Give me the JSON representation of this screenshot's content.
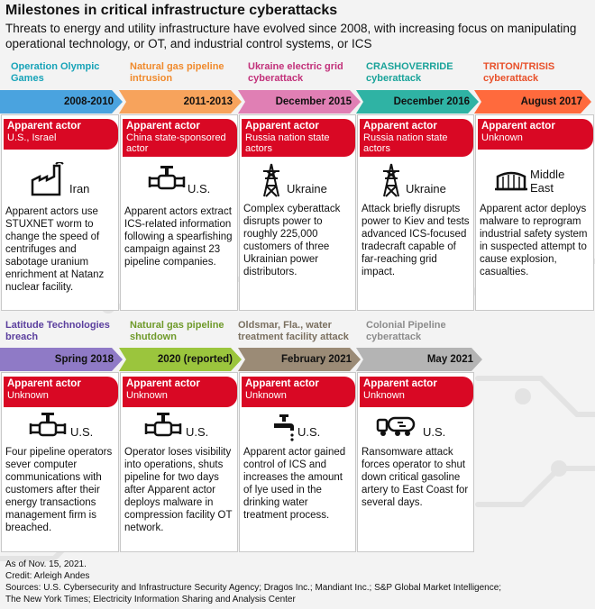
{
  "header": {
    "title": "Milestones in critical infrastructure cyberattacks",
    "subtitle": "Threats to energy and utility infrastructure have evolved since 2008, with increasing focus on manipulating operational technology, or OT, and industrial control systems, or ICS"
  },
  "colors": {
    "teal": "#17a3b8",
    "orange": "#f08a2c",
    "pink": "#c2317a",
    "teal2": "#1aa39a",
    "red_orange": "#e8502a",
    "purple": "#5b3f9e",
    "green": "#6f9a2a",
    "brown": "#7a6f5f",
    "gray": "#8c8c8c",
    "blue_arrow": "#4aa3df",
    "orange_arrow": "#f08a2c",
    "pink_arrow": "#e07fb4",
    "teal_arrow": "#2fb3a4",
    "red_arrow": "#ff6a3d",
    "purple_arrow": "#8f7ac6",
    "green_arrow": "#9bc53d",
    "brown_arrow": "#9b8b76",
    "gray_arrow": "#b4b4b4",
    "badge": "#d90824"
  },
  "badge_label": "Apparent actor",
  "events": [
    {
      "title": "Operation Olympic Games",
      "date": "2008-2010",
      "actor": "U.S., Israel",
      "country": "Iran",
      "icon": "power-plant-icon",
      "desc": "Apparent actors use STUXNET worm to change the speed of centrifuges and sabotage uranium enrichment at Natanz nuclear facility."
    },
    {
      "title": "Natural gas pipeline intrusion",
      "date": "2011-2013",
      "actor": "China state-sponsored actor",
      "country": "U.S.",
      "icon": "pipeline-valve-icon",
      "desc": "Apparent actors extract ICS-related information following a spearfishing campaign against 23 pipeline companies."
    },
    {
      "title": "Ukraine electric grid cyberattack",
      "date": "December 2015",
      "actor": "Russia nation state actors",
      "country": "Ukraine",
      "icon": "power-tower-icon",
      "desc": "Complex cyberattack disrupts power to roughly 225,000 customers of three Ukrainian power distributors."
    },
    {
      "title": "CRASHOVERRIDE cyberattack",
      "date": "December 2016",
      "actor": "Russia nation state actors",
      "country": "Ukraine",
      "icon": "power-tower-icon",
      "desc": "Attack briefly disrupts power to Kiev and tests advanced ICS-focused tradecraft capable of far-reaching grid impact."
    },
    {
      "title": "TRITON/TRISIS cyberattack",
      "date": "August 2017",
      "actor": "Unknown",
      "country": "Middle East",
      "icon": "storage-tank-icon",
      "desc": "Apparent actor deploys malware to reprogram industrial safety system in suspected attempt to cause explosion, casualties."
    },
    {
      "title": "Latitude Technologies breach",
      "date": "Spring 2018",
      "actor": "Unknown",
      "country": "U.S.",
      "icon": "pipeline-valve-icon",
      "desc": "Four pipeline operators sever computer communications with customers after their energy transactions management firm is breached."
    },
    {
      "title": "Natural gas pipeline shutdown",
      "date": "2020 (reported)",
      "actor": "Unknown",
      "country": "U.S.",
      "icon": "pipeline-valve-icon",
      "desc": "Operator loses visibility into operations, shuts pipeline for two days after Apparent actor deploys malware in compression facility OT network."
    },
    {
      "title": "Oldsmar, Fla., water treatment facility attack",
      "date": "February 2021",
      "actor": "Unknown",
      "country": "U.S.",
      "icon": "water-faucet-icon",
      "desc": "Apparent actor gained control of ICS and increases the amount of lye used in the drinking water treatment process."
    },
    {
      "title": "Colonial Pipeline cyberattack",
      "date": "May 2021",
      "actor": "Unknown",
      "country": "U.S.",
      "icon": "tanker-truck-icon",
      "desc": "Ransomware attack forces operator to shut down critical gasoline artery to East Coast for several days."
    }
  ],
  "footer": {
    "as_of": "As of Nov. 15, 2021.",
    "credit": "Credit: Arleigh Andes",
    "sources_1": "Sources: U.S. Cybersecurity and Infrastructure Security Agency; Dragos Inc.; Mandiant Inc.; S&P Global Market Intelligence;",
    "sources_2": "The New York Times; Electricity Information Sharing and Analysis Center"
  }
}
